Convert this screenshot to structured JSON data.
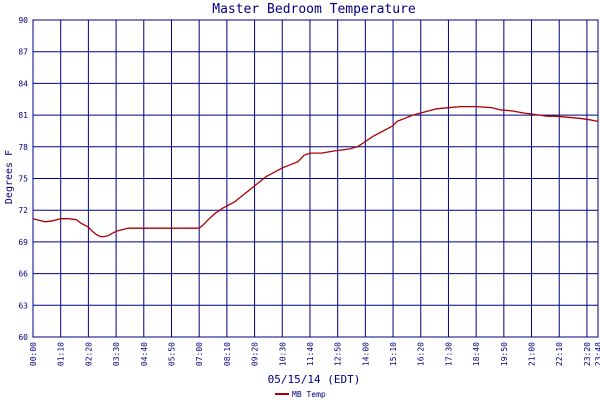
{
  "chart_data": {
    "type": "line",
    "title": "Master Bedroom Temperature",
    "xlabel": "05/15/14 (EDT)",
    "ylabel": "Degrees F",
    "ylim": [
      60,
      90
    ],
    "yticks": [
      60,
      63,
      66,
      69,
      72,
      75,
      78,
      81,
      84,
      87,
      90
    ],
    "xlim": [
      "00:00",
      "23:48"
    ],
    "xticks": [
      "00:00",
      "01:10",
      "02:20",
      "03:30",
      "04:40",
      "05:50",
      "07:00",
      "08:10",
      "09:20",
      "10:30",
      "11:40",
      "12:50",
      "14:00",
      "15:10",
      "16:20",
      "17:30",
      "18:40",
      "19:50",
      "21:00",
      "22:10",
      "23:20",
      "23:48"
    ],
    "grid": true,
    "legend": "bottom-left",
    "colors": {
      "series": "#aa0000",
      "grid": "#000080",
      "text": "#000080"
    },
    "series": [
      {
        "name": "MB Temp",
        "x": [
          "00:00",
          "00:20",
          "00:30",
          "00:50",
          "01:10",
          "01:30",
          "01:50",
          "02:00",
          "02:20",
          "02:30",
          "02:40",
          "02:50",
          "03:00",
          "03:10",
          "03:20",
          "03:30",
          "03:50",
          "04:00",
          "04:10",
          "04:40",
          "05:00",
          "05:30",
          "05:50",
          "06:10",
          "06:40",
          "07:00",
          "07:10",
          "07:20",
          "07:40",
          "08:00",
          "08:10",
          "08:30",
          "08:50",
          "09:10",
          "09:30",
          "09:50",
          "10:10",
          "10:30",
          "10:50",
          "11:10",
          "11:25",
          "11:40",
          "12:10",
          "12:40",
          "13:00",
          "13:20",
          "13:40",
          "14:00",
          "14:20",
          "14:40",
          "15:00",
          "15:10",
          "15:20",
          "15:40",
          "16:00",
          "16:20",
          "16:40",
          "17:00",
          "17:30",
          "18:00",
          "18:40",
          "19:20",
          "19:40",
          "20:10",
          "20:40",
          "21:00",
          "21:20",
          "21:40",
          "22:00",
          "22:30",
          "23:00",
          "23:20",
          "23:35",
          "23:48"
        ],
        "y": [
          71.2,
          71.0,
          70.9,
          71.0,
          71.2,
          71.2,
          71.1,
          70.8,
          70.4,
          70.0,
          69.7,
          69.5,
          69.5,
          69.6,
          69.8,
          70.0,
          70.2,
          70.3,
          70.3,
          70.3,
          70.3,
          70.3,
          70.3,
          70.3,
          70.3,
          70.3,
          70.6,
          71.0,
          71.7,
          72.2,
          72.4,
          72.8,
          73.4,
          74.0,
          74.6,
          75.2,
          75.6,
          76.0,
          76.3,
          76.6,
          77.2,
          77.4,
          77.4,
          77.6,
          77.7,
          77.8,
          78.0,
          78.5,
          79.0,
          79.4,
          79.8,
          80.0,
          80.4,
          80.7,
          81.0,
          81.2,
          81.4,
          81.6,
          81.7,
          81.8,
          81.8,
          81.7,
          81.5,
          81.4,
          81.2,
          81.1,
          81.0,
          80.9,
          80.9,
          80.8,
          80.7,
          80.6,
          80.5,
          80.4
        ]
      }
    ]
  }
}
